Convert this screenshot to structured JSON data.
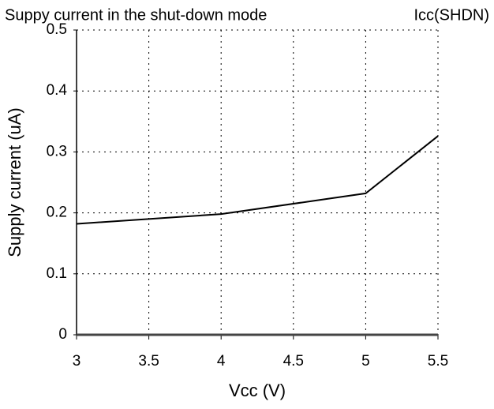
{
  "chart_data": {
    "type": "line",
    "title": "Suppy current in the shut-down mode",
    "subtitle": "Icc(SHDN)",
    "x_label": "Vcc (V)",
    "y_label": "Supply current (uA)",
    "x": [
      3,
      4,
      5,
      5.5
    ],
    "series": [
      {
        "color": "#000000",
        "values": [
          0.182,
          0.198,
          0.232,
          0.326
        ]
      }
    ],
    "xlim": [
      3,
      5.5
    ],
    "xticks": [
      3,
      3.5,
      4,
      4.5,
      5,
      5.5
    ],
    "ylim": [
      0,
      0.5
    ],
    "yticks": [
      0,
      0.1,
      0.2,
      0.3,
      0.4,
      0.5
    ],
    "grid": true
  }
}
